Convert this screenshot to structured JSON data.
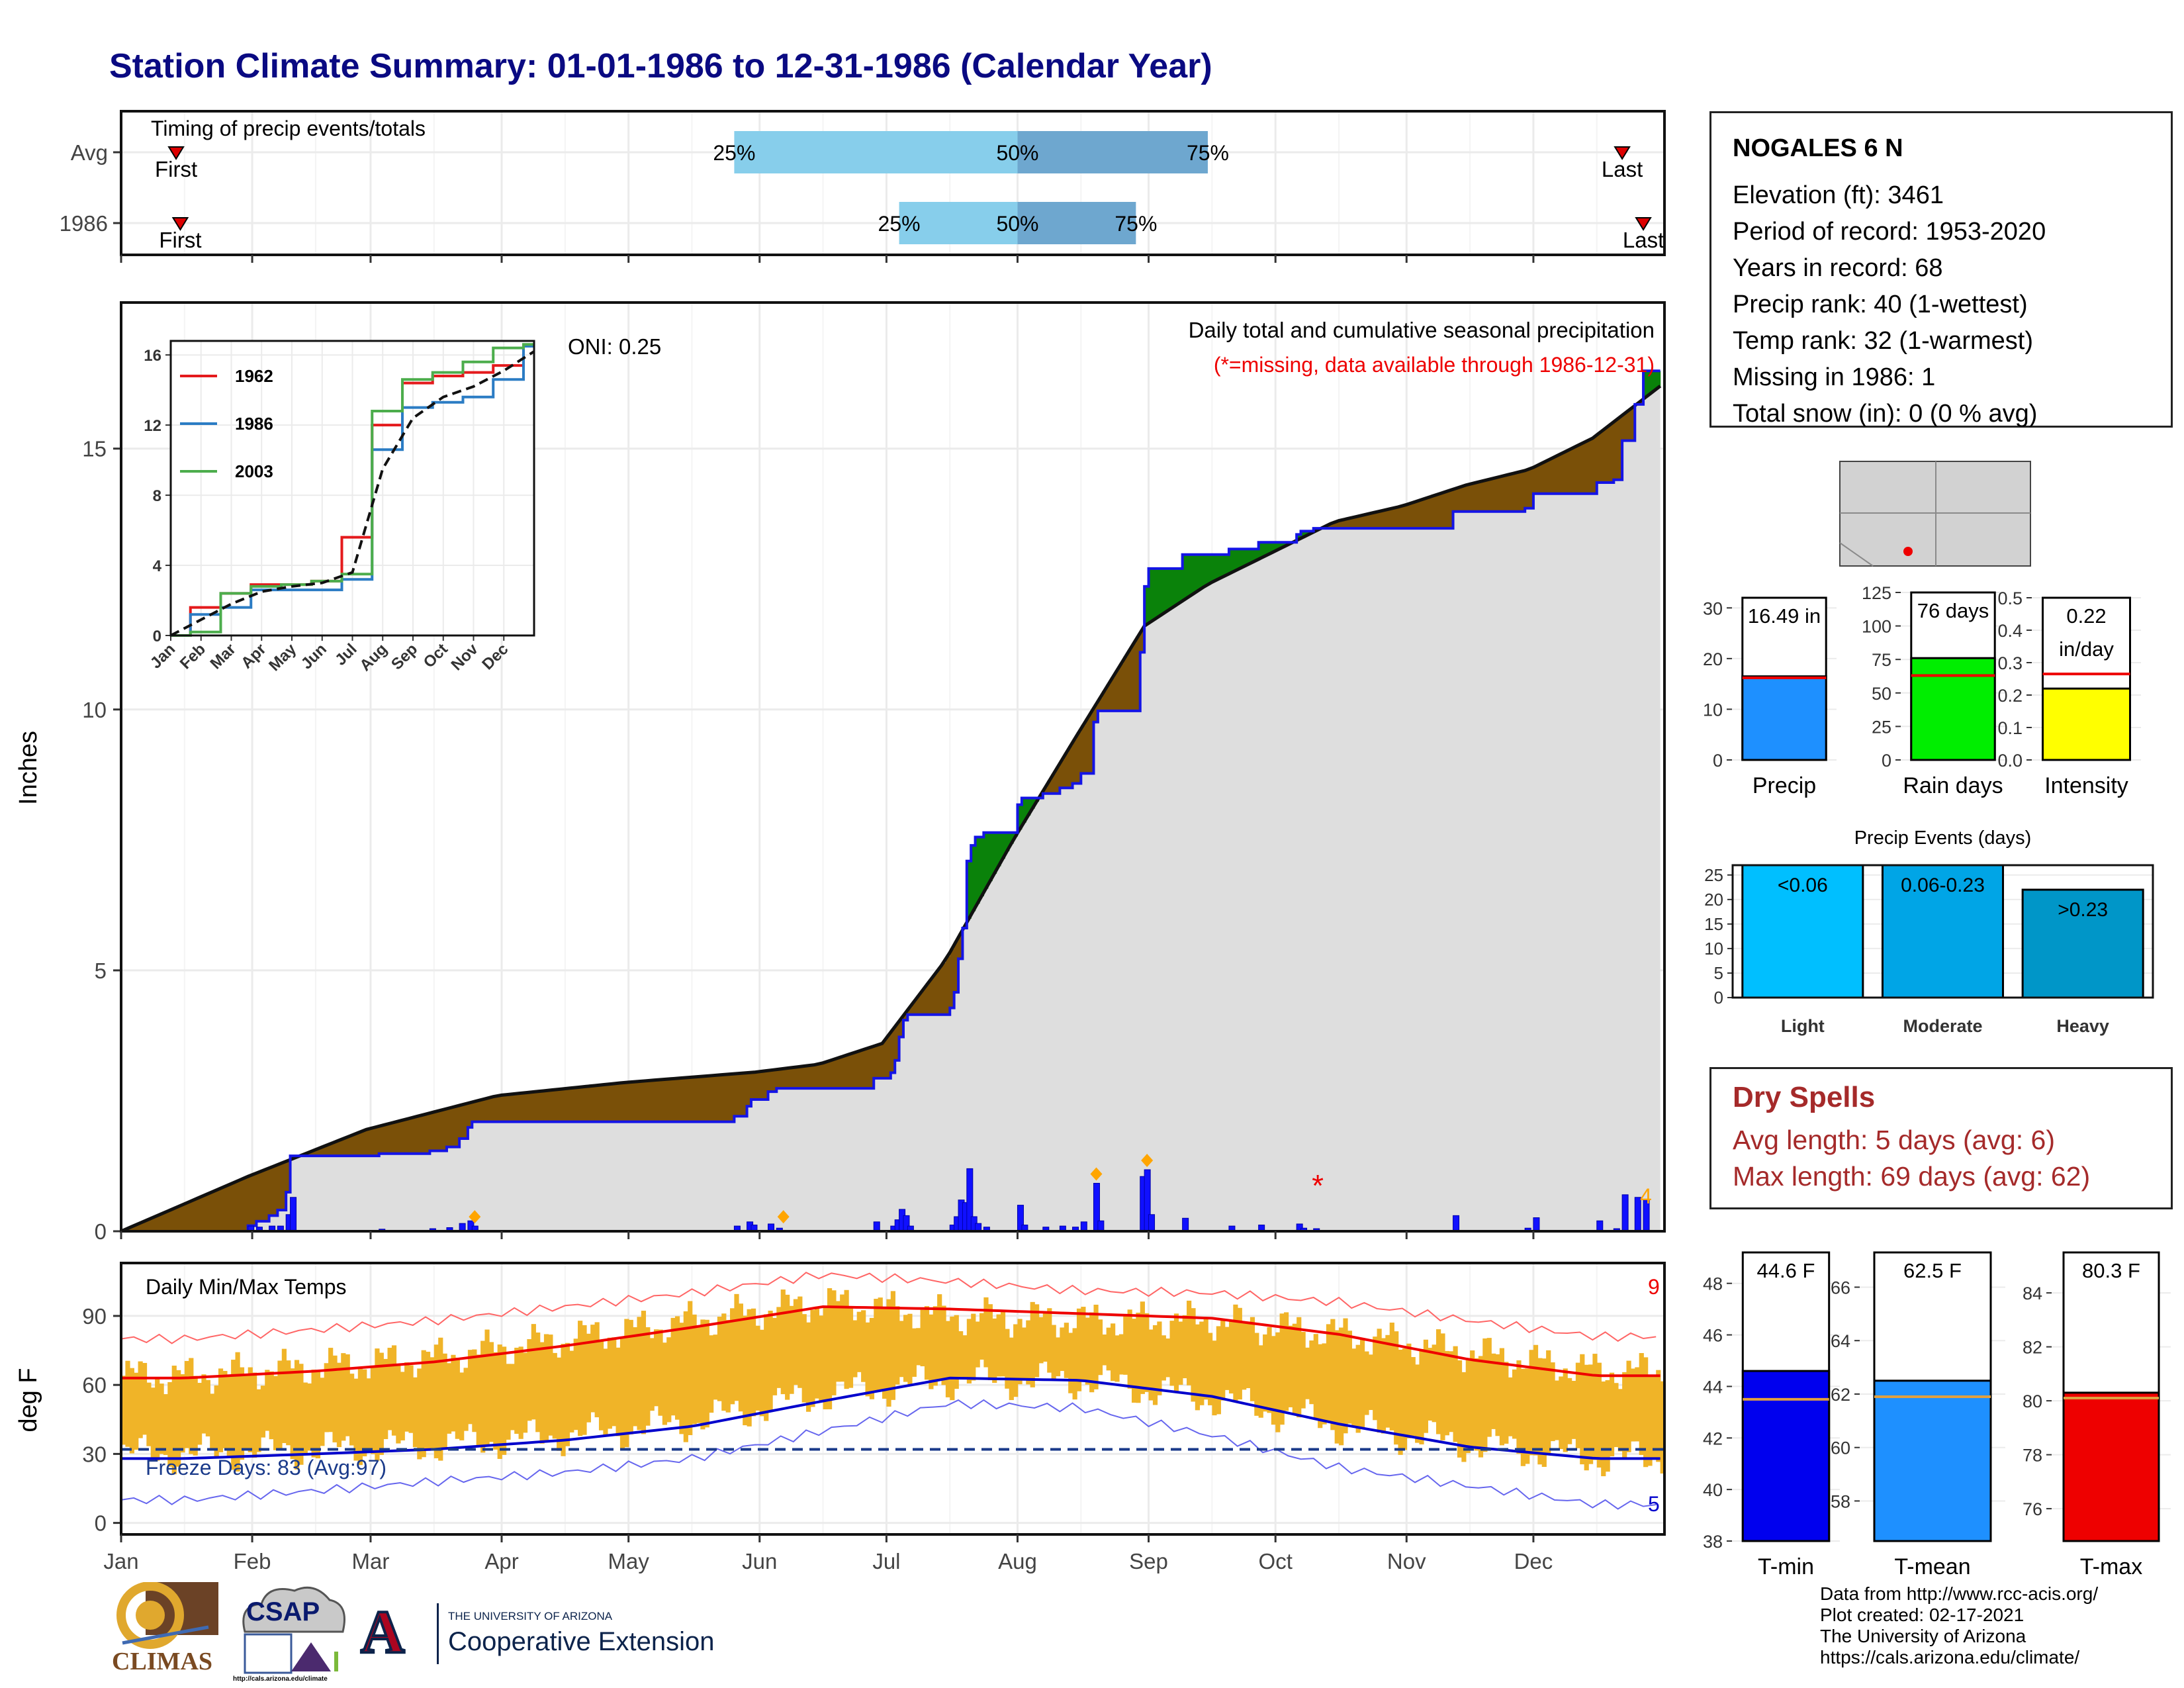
{
  "header": {
    "title": "Station Climate Summary: 01-01-1986 to 12-31-1986 (Calendar Year)"
  },
  "station": {
    "name": "NOGALES 6 N",
    "lines": [
      "Elevation (ft): 3461",
      "Period of record: 1953-2020",
      "Years in record: 68",
      "Precip rank: 40 (1-wettest)",
      "Temp rank: 32 (1-warmest)",
      "Missing in 1986: 1",
      "Total snow (in): 0 (0 % avg)"
    ]
  },
  "dry_spells": {
    "title": "Dry Spells",
    "avg": "Avg length: 5 days (avg: 6)",
    "max": "Max length: 69 days (avg: 62)"
  },
  "credits": [
    "Data from http://www.rcc-acis.org/",
    "Plot created: 02-17-2021",
    "The University of Arizona",
    "https://cals.arizona.edu/climate/"
  ],
  "logos": {
    "climas": "CLIMAS",
    "csap": "CSAP",
    "csap_url": "http://cals.arizona.edu/climate",
    "ua_small": "THE UNIVERSITY OF ARIZONA",
    "ua_big": "Cooperative Extension",
    "ua_letter": "A"
  },
  "colors": {
    "cum1986": "#1414e6",
    "avgcum": "#111111",
    "above": "#0a820a",
    "below": "#7a5008",
    "q_light": "#87ceeb",
    "q_dark": "#6ea7cf",
    "bars": "#1010ff",
    "temp": "#f0b428",
    "tmax": "#ee0000",
    "tmin": "#0000cc",
    "grey": "#dedede"
  },
  "chart_data": [
    {
      "type": "timing",
      "title": "Timing of precip events/totals",
      "rows": [
        {
          "label": "Avg",
          "first_date": "1986-01-14",
          "last_date": "1986-12-22",
          "q25": "1986-05-26",
          "q50": "1986-08-01",
          "q75": "1986-09-15",
          "first_text": "First",
          "last_text": "Last",
          "q25_text": "25%",
          "q50_text": "50%",
          "q75_text": "75%"
        },
        {
          "label": "1986",
          "first_date": "1986-01-15",
          "last_date": "1986-12-27",
          "q25": "1986-07-04",
          "q50": "1986-08-01",
          "q75": "1986-08-29",
          "first_text": "First",
          "last_text": "Last",
          "q25_text": "25%",
          "q50_text": "50%",
          "q75_text": "75%"
        }
      ]
    },
    {
      "type": "area",
      "title": "Daily total and cumulative seasonal precipitation",
      "subtitle": "(*=missing, data available through 1986-12-31)",
      "oni": "ONI: 0.25",
      "ylabel": "Inches",
      "ylim": [
        0,
        17.8
      ],
      "yticks": [
        0,
        5,
        10,
        15
      ],
      "avg_total": 16.2,
      "total_1986": 16.49,
      "count_label": "4",
      "missing_date": "1986-10-11",
      "missing_value": 0.95,
      "avg_cumulative": [
        [
          "1986-01-01",
          0
        ],
        [
          "1986-01-31",
          1.05
        ],
        [
          "1986-02-28",
          1.95
        ],
        [
          "1986-03-31",
          2.6
        ],
        [
          "1986-04-30",
          2.85
        ],
        [
          "1986-05-31",
          3.05
        ],
        [
          "1986-06-15",
          3.2
        ],
        [
          "1986-06-30",
          3.6
        ],
        [
          "1986-07-15",
          5.2
        ],
        [
          "1986-07-31",
          7.5
        ],
        [
          "1986-08-15",
          9.5
        ],
        [
          "1986-08-31",
          11.6
        ],
        [
          "1986-09-15",
          12.4
        ],
        [
          "1986-09-30",
          13.0
        ],
        [
          "1986-10-15",
          13.6
        ],
        [
          "1986-10-31",
          13.9
        ],
        [
          "1986-11-15",
          14.3
        ],
        [
          "1986-11-30",
          14.6
        ],
        [
          "1986-12-15",
          15.2
        ],
        [
          "1986-12-31",
          16.2
        ]
      ],
      "daily_1986": [
        [
          "1986-01-31",
          0.1
        ],
        [
          "1986-02-02",
          0.08
        ],
        [
          "1986-02-05",
          0.1
        ],
        [
          "1986-02-07",
          0.1
        ],
        [
          "1986-02-09",
          0.32
        ],
        [
          "1986-02-10",
          0.65
        ],
        [
          "1986-03-03",
          0.04
        ],
        [
          "1986-03-15",
          0.05
        ],
        [
          "1986-03-19",
          0.07
        ],
        [
          "1986-03-22",
          0.15
        ],
        [
          "1986-03-24",
          0.2
        ],
        [
          "1986-03-25",
          0.1
        ],
        [
          "1986-05-26",
          0.1
        ],
        [
          "1986-05-29",
          0.18
        ],
        [
          "1986-05-30",
          0.12
        ],
        [
          "1986-06-03",
          0.14
        ],
        [
          "1986-06-05",
          0.06
        ],
        [
          "1986-06-28",
          0.18
        ],
        [
          "1986-07-02",
          0.1
        ],
        [
          "1986-07-03",
          0.22
        ],
        [
          "1986-07-04",
          0.42
        ],
        [
          "1986-07-05",
          0.3
        ],
        [
          "1986-07-06",
          0.1
        ],
        [
          "1986-07-16",
          0.12
        ],
        [
          "1986-07-17",
          0.28
        ],
        [
          "1986-07-18",
          0.6
        ],
        [
          "1986-07-19",
          0.55
        ],
        [
          "1986-07-20",
          1.2
        ],
        [
          "1986-07-21",
          0.28
        ],
        [
          "1986-07-22",
          0.15
        ],
        [
          "1986-07-24",
          0.08
        ],
        [
          "1986-08-01",
          0.5
        ],
        [
          "1986-08-02",
          0.12
        ],
        [
          "1986-08-07",
          0.08
        ],
        [
          "1986-08-11",
          0.1
        ],
        [
          "1986-08-14",
          0.08
        ],
        [
          "1986-08-16",
          0.18
        ],
        [
          "1986-08-19",
          0.92
        ],
        [
          "1986-08-20",
          0.2
        ],
        [
          "1986-08-30",
          1.05
        ],
        [
          "1986-08-31",
          1.18
        ],
        [
          "1986-09-01",
          0.32
        ],
        [
          "1986-09-09",
          0.25
        ],
        [
          "1986-09-20",
          0.1
        ],
        [
          "1986-09-27",
          0.12
        ],
        [
          "1986-10-06",
          0.14
        ],
        [
          "1986-10-07",
          0.06
        ],
        [
          "1986-10-10",
          0.05
        ],
        [
          "1986-11-12",
          0.3
        ],
        [
          "1986-11-29",
          0.06
        ],
        [
          "1986-12-01",
          0.26
        ],
        [
          "1986-12-16",
          0.2
        ],
        [
          "1986-12-20",
          0.05
        ],
        [
          "1986-12-22",
          0.7
        ],
        [
          "1986-12-25",
          0.65
        ],
        [
          "1986-12-27",
          0.6
        ]
      ],
      "record_markers": [
        "1986-03-25",
        "1986-06-06",
        "1986-08-19",
        "1986-08-31"
      ],
      "inset": {
        "type": "line",
        "ylim": [
          0,
          16.8
        ],
        "yticks": [
          0,
          4,
          8,
          12,
          16
        ],
        "xticks": [
          "Jan",
          "Feb",
          "Mar",
          "Apr",
          "May",
          "Jun",
          "Jul",
          "Aug",
          "Sep",
          "Oct",
          "Nov",
          "Dec"
        ],
        "series": [
          {
            "name": "1962",
            "color": "#e41a1c",
            "values": [
              0,
              1.6,
              2.4,
              2.9,
              2.9,
              3.1,
              5.6,
              12.0,
              14.4,
              14.8,
              15.0,
              15.4,
              16.5
            ]
          },
          {
            "name": "1986",
            "color": "#2b7cc4",
            "values": [
              0,
              1.2,
              1.6,
              2.6,
              2.6,
              2.6,
              3.2,
              10.6,
              13.0,
              13.3,
              13.6,
              14.6,
              16.5
            ]
          },
          {
            "name": "2003",
            "color": "#4cad4c",
            "values": [
              0,
              0.2,
              2.4,
              2.8,
              2.9,
              3.1,
              3.5,
              12.8,
              14.6,
              15.0,
              15.6,
              16.4,
              16.6
            ]
          },
          {
            "name": "",
            "color": "#111111",
            "values": [
              0,
              0.9,
              1.8,
              2.5,
              2.8,
              3.0,
              3.6,
              9.5,
              12.4,
              13.6,
              14.2,
              15.1,
              16.2
            ]
          }
        ]
      }
    },
    {
      "type": "line",
      "title": "Daily Min/Max Temps",
      "ylabel": "deg F",
      "ylim": [
        -5,
        113
      ],
      "yticks": [
        0,
        30,
        60,
        90
      ],
      "freeze_text": "Freeze Days: 83 (Avg:97)",
      "freeze_line": 32,
      "max_count": "9",
      "min_count": "5",
      "monthly_means": {
        "months": [
          "Jan",
          "Feb",
          "Mar",
          "Apr",
          "May",
          "Jun",
          "Jul",
          "Aug",
          "Sep",
          "Oct",
          "Nov",
          "Dec"
        ],
        "tmax_avg": [
          63,
          66,
          70,
          77,
          85,
          94,
          93,
          91,
          89,
          82,
          71,
          64
        ],
        "tmin_avg": [
          28,
          30,
          32,
          36,
          42,
          53,
          63,
          62,
          55,
          43,
          33,
          28
        ],
        "record_max": [
          80,
          84,
          88,
          94,
          100,
          108,
          105,
          101,
          100,
          96,
          88,
          81
        ],
        "record_min": [
          10,
          14,
          18,
          22,
          28,
          40,
          52,
          50,
          38,
          24,
          16,
          8
        ],
        "obs_high": [
          64,
          68,
          72,
          80,
          88,
          96,
          90,
          88,
          88,
          82,
          74,
          66
        ],
        "obs_low": [
          30,
          32,
          34,
          38,
          44,
          56,
          62,
          62,
          54,
          42,
          34,
          28
        ]
      }
    },
    {
      "type": "bar",
      "categories": [
        "Precip"
      ],
      "values": [
        16.49
      ],
      "avg": 16.2,
      "label": "16.49 in",
      "ylim": [
        0,
        32
      ],
      "yticks": [
        0,
        10,
        20,
        30
      ],
      "fill": "#1e90ff"
    },
    {
      "type": "bar",
      "categories": [
        "Rain days"
      ],
      "values": [
        76
      ],
      "avg": 63,
      "label": "76 days",
      "ylim": [
        0,
        125
      ],
      "yticks": [
        0,
        25,
        50,
        75,
        100,
        125
      ],
      "fill": "#00ee00"
    },
    {
      "type": "bar",
      "categories": [
        "Intensity"
      ],
      "values": [
        0.22
      ],
      "avg": 0.265,
      "label": "0.22",
      "label2": "in/day",
      "ylim": [
        0,
        0.5
      ],
      "yticks": [
        "0.0",
        "0.1",
        "0.2",
        "0.3",
        "0.4",
        "0.5"
      ],
      "fill": "#ffff00"
    },
    {
      "type": "bar",
      "title": "Precip Events (days)",
      "categories": [
        "Light",
        "Moderate",
        "Heavy"
      ],
      "values": [
        27,
        27,
        22
      ],
      "labels": [
        "<0.06",
        "0.06-0.23",
        ">0.23"
      ],
      "ylim": [
        0,
        27
      ],
      "yticks": [
        0,
        5,
        10,
        15,
        20,
        25
      ],
      "fills": [
        "#00bfff",
        "#00a5e6",
        "#0096c8"
      ]
    },
    {
      "type": "bar",
      "categories": [
        "T-min"
      ],
      "values": [
        44.6
      ],
      "avg": 43.5,
      "label": "44.6 F",
      "ylim": [
        38,
        49.2
      ],
      "yticks": [
        38,
        40,
        42,
        44,
        46,
        48
      ],
      "fill": "#0000ee"
    },
    {
      "type": "bar",
      "categories": [
        "T-mean"
      ],
      "values": [
        62.5
      ],
      "avg": 61.9,
      "label": "62.5 F",
      "ylim": [
        56.5,
        67.3
      ],
      "yticks": [
        58,
        60,
        62,
        64,
        66
      ],
      "fill": "#1e90ff"
    },
    {
      "type": "bar",
      "categories": [
        "T-max"
      ],
      "values": [
        80.3
      ],
      "avg": 80.1,
      "label": "80.3 F",
      "ylim": [
        74.8,
        85.5
      ],
      "yticks": [
        76,
        78,
        80,
        82,
        84
      ],
      "fill": "#ee0000"
    }
  ],
  "months": [
    "Jan",
    "Feb",
    "Mar",
    "Apr",
    "May",
    "Jun",
    "Jul",
    "Aug",
    "Sep",
    "Oct",
    "Nov",
    "Dec"
  ]
}
